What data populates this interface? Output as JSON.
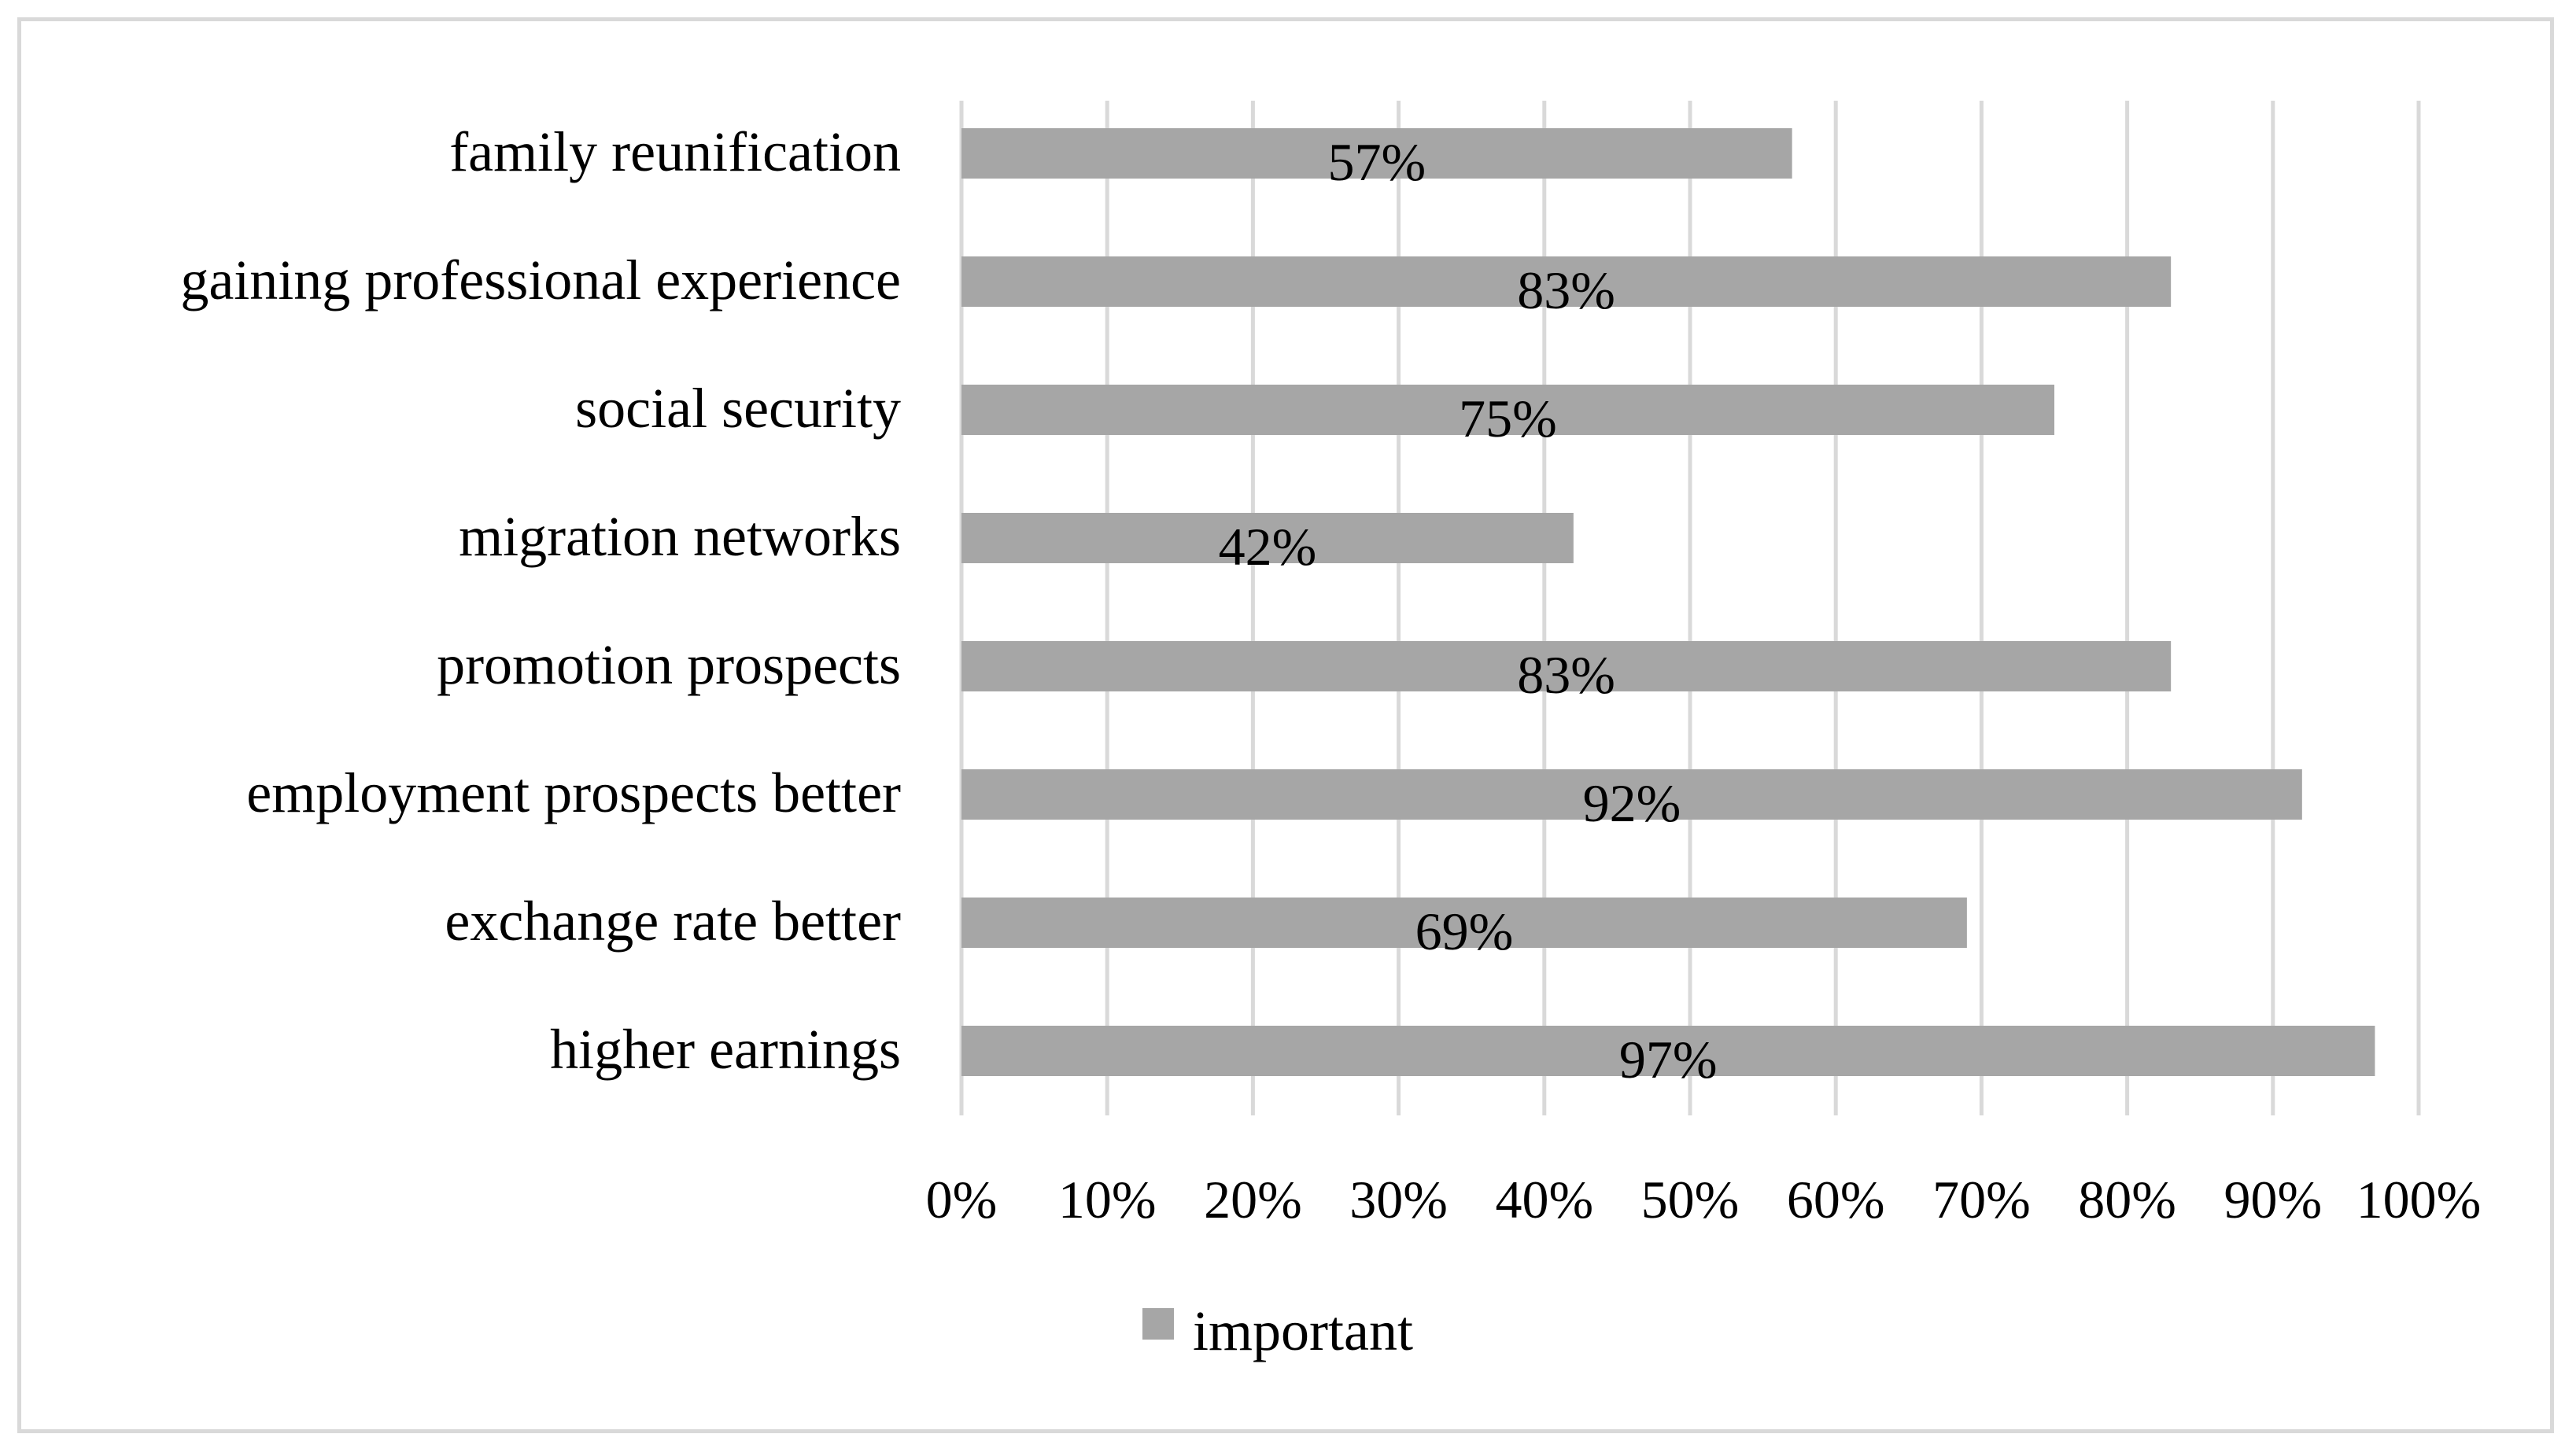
{
  "chart_data": {
    "type": "bar",
    "orientation": "horizontal",
    "categories": [
      "family reunification",
      "gaining professional experience",
      "social security",
      "migration networks",
      "promotion prospects",
      "employment prospects better",
      "exchange rate better",
      "higher earnings"
    ],
    "series": [
      {
        "name": "important",
        "values": [
          57,
          83,
          75,
          42,
          83,
          92,
          69,
          97
        ],
        "data_labels": [
          "57%",
          "83%",
          "75%",
          "42%",
          "83%",
          "92%",
          "69%",
          "97%"
        ]
      }
    ],
    "xlim": [
      0,
      100
    ],
    "x_ticks": [
      "0%",
      "10%",
      "20%",
      "30%",
      "40%",
      "50%",
      "60%",
      "70%",
      "80%",
      "90%",
      "100%"
    ],
    "title": "",
    "xlabel": "",
    "ylabel": "",
    "grid": "vertical",
    "legend": "bottom-center",
    "colors": {
      "bar": "#a6a6a6",
      "grid": "#d9d9d9",
      "frame": "#d9d9d9",
      "text": "#000000"
    }
  }
}
